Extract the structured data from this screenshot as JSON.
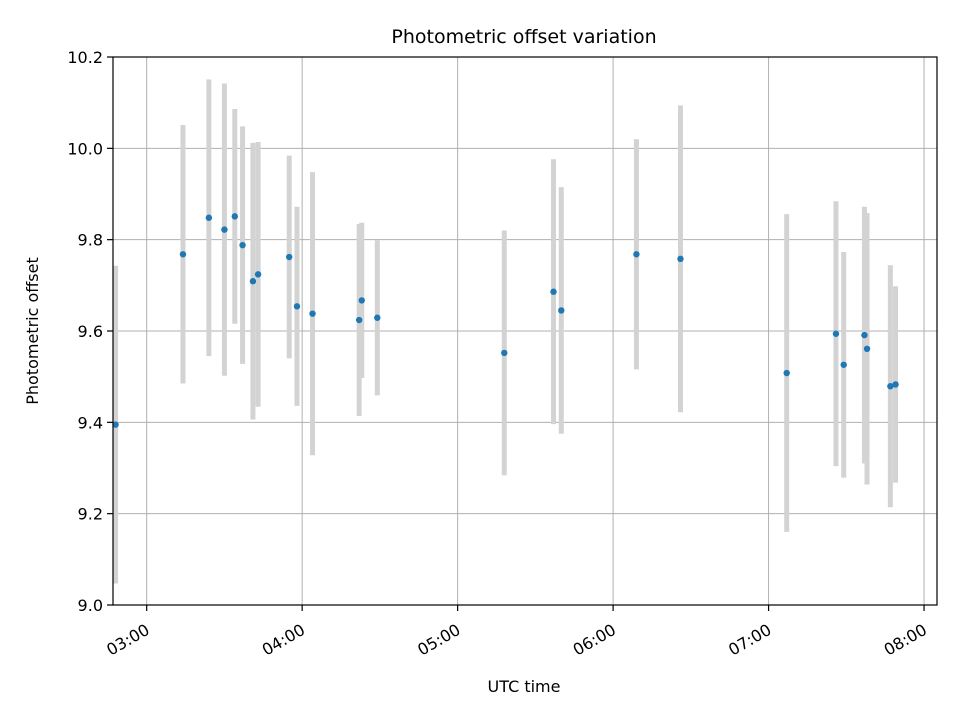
{
  "chart_data": {
    "type": "scatter",
    "title": "Photometric offset variation",
    "xlabel": "UTC time",
    "ylabel": "Photometric offset",
    "x_unit": "hours UTC",
    "xlim": [
      "02:47",
      "08:05"
    ],
    "ylim": [
      9.0,
      10.2
    ],
    "x_ticks": [
      "03:00",
      "04:00",
      "05:00",
      "06:00",
      "07:00",
      "08:00"
    ],
    "y_ticks": [
      "9.0",
      "9.2",
      "9.4",
      "9.6",
      "9.8",
      "10.0",
      "10.2"
    ],
    "grid": true,
    "legend": "none",
    "point_color": "#1f77b4",
    "errorbar_color": "#d3d3d3",
    "points": [
      {
        "x": "02:48",
        "y": 9.395,
        "yerr": 0.348
      },
      {
        "x": "03:14",
        "y": 9.768,
        "yerr": 0.283
      },
      {
        "x": "03:24",
        "y": 9.848,
        "yerr": 0.303
      },
      {
        "x": "03:30",
        "y": 9.822,
        "yerr": 0.32
      },
      {
        "x": "03:34",
        "y": 9.851,
        "yerr": 0.235
      },
      {
        "x": "03:37",
        "y": 9.788,
        "yerr": 0.26
      },
      {
        "x": "03:41",
        "y": 9.709,
        "yerr": 0.303
      },
      {
        "x": "03:43",
        "y": 9.724,
        "yerr": 0.29
      },
      {
        "x": "03:55",
        "y": 9.762,
        "yerr": 0.222
      },
      {
        "x": "03:58",
        "y": 9.654,
        "yerr": 0.218
      },
      {
        "x": "04:04",
        "y": 9.638,
        "yerr": 0.31
      },
      {
        "x": "04:22",
        "y": 9.624,
        "yerr": 0.21
      },
      {
        "x": "04:23",
        "y": 9.667,
        "yerr": 0.17
      },
      {
        "x": "04:29",
        "y": 9.629,
        "yerr": 0.17
      },
      {
        "x": "05:18",
        "y": 9.552,
        "yerr": 0.268
      },
      {
        "x": "05:37",
        "y": 9.686,
        "yerr": 0.29
      },
      {
        "x": "05:40",
        "y": 9.645,
        "yerr": 0.27
      },
      {
        "x": "06:09",
        "y": 9.768,
        "yerr": 0.252
      },
      {
        "x": "06:26",
        "y": 9.758,
        "yerr": 0.336
      },
      {
        "x": "07:07",
        "y": 9.508,
        "yerr": 0.348
      },
      {
        "x": "07:26",
        "y": 9.594,
        "yerr": 0.29
      },
      {
        "x": "07:29",
        "y": 9.526,
        "yerr": 0.247
      },
      {
        "x": "07:37",
        "y": 9.591,
        "yerr": 0.281
      },
      {
        "x": "07:38",
        "y": 9.561,
        "yerr": 0.297
      },
      {
        "x": "07:47",
        "y": 9.479,
        "yerr": 0.265
      },
      {
        "x": "07:49",
        "y": 9.483,
        "yerr": 0.215
      }
    ]
  }
}
